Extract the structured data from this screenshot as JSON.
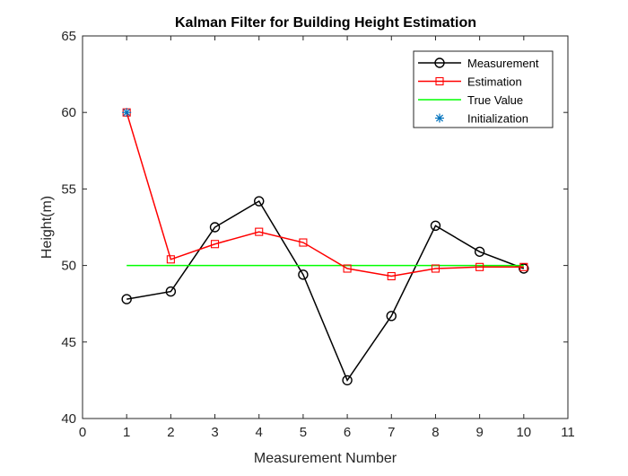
{
  "chart_data": {
    "type": "line",
    "title": "Kalman Filter for Building Height Estimation",
    "xlabel": "Measurement Number",
    "ylabel": "Height(m)",
    "xlim": [
      0,
      11
    ],
    "ylim": [
      40,
      65
    ],
    "xticks": [
      0,
      1,
      2,
      3,
      4,
      5,
      6,
      7,
      8,
      9,
      10,
      11
    ],
    "yticks": [
      40,
      45,
      50,
      55,
      60,
      65
    ],
    "grid": false,
    "legend_position": "top-right",
    "series": [
      {
        "name": "Measurement",
        "color": "#000000",
        "marker": "circle",
        "x": [
          1,
          2,
          3,
          4,
          5,
          6,
          7,
          8,
          9,
          10
        ],
        "y": [
          47.8,
          48.3,
          52.5,
          54.2,
          49.4,
          42.5,
          46.7,
          52.6,
          50.9,
          49.8
        ]
      },
      {
        "name": "Estimation",
        "color": "#ff0000",
        "marker": "square",
        "x": [
          1,
          2,
          3,
          4,
          5,
          6,
          7,
          8,
          9,
          10
        ],
        "y": [
          60.0,
          50.4,
          51.4,
          52.2,
          51.5,
          49.8,
          49.3,
          49.8,
          49.9,
          49.9
        ]
      },
      {
        "name": "True Value",
        "color": "#00ff00",
        "marker": "none",
        "x": [
          1,
          10
        ],
        "y": [
          50,
          50
        ]
      },
      {
        "name": "Initialization",
        "color": "#0072bd",
        "marker": "asterisk",
        "x": [
          1
        ],
        "y": [
          60
        ]
      }
    ]
  }
}
